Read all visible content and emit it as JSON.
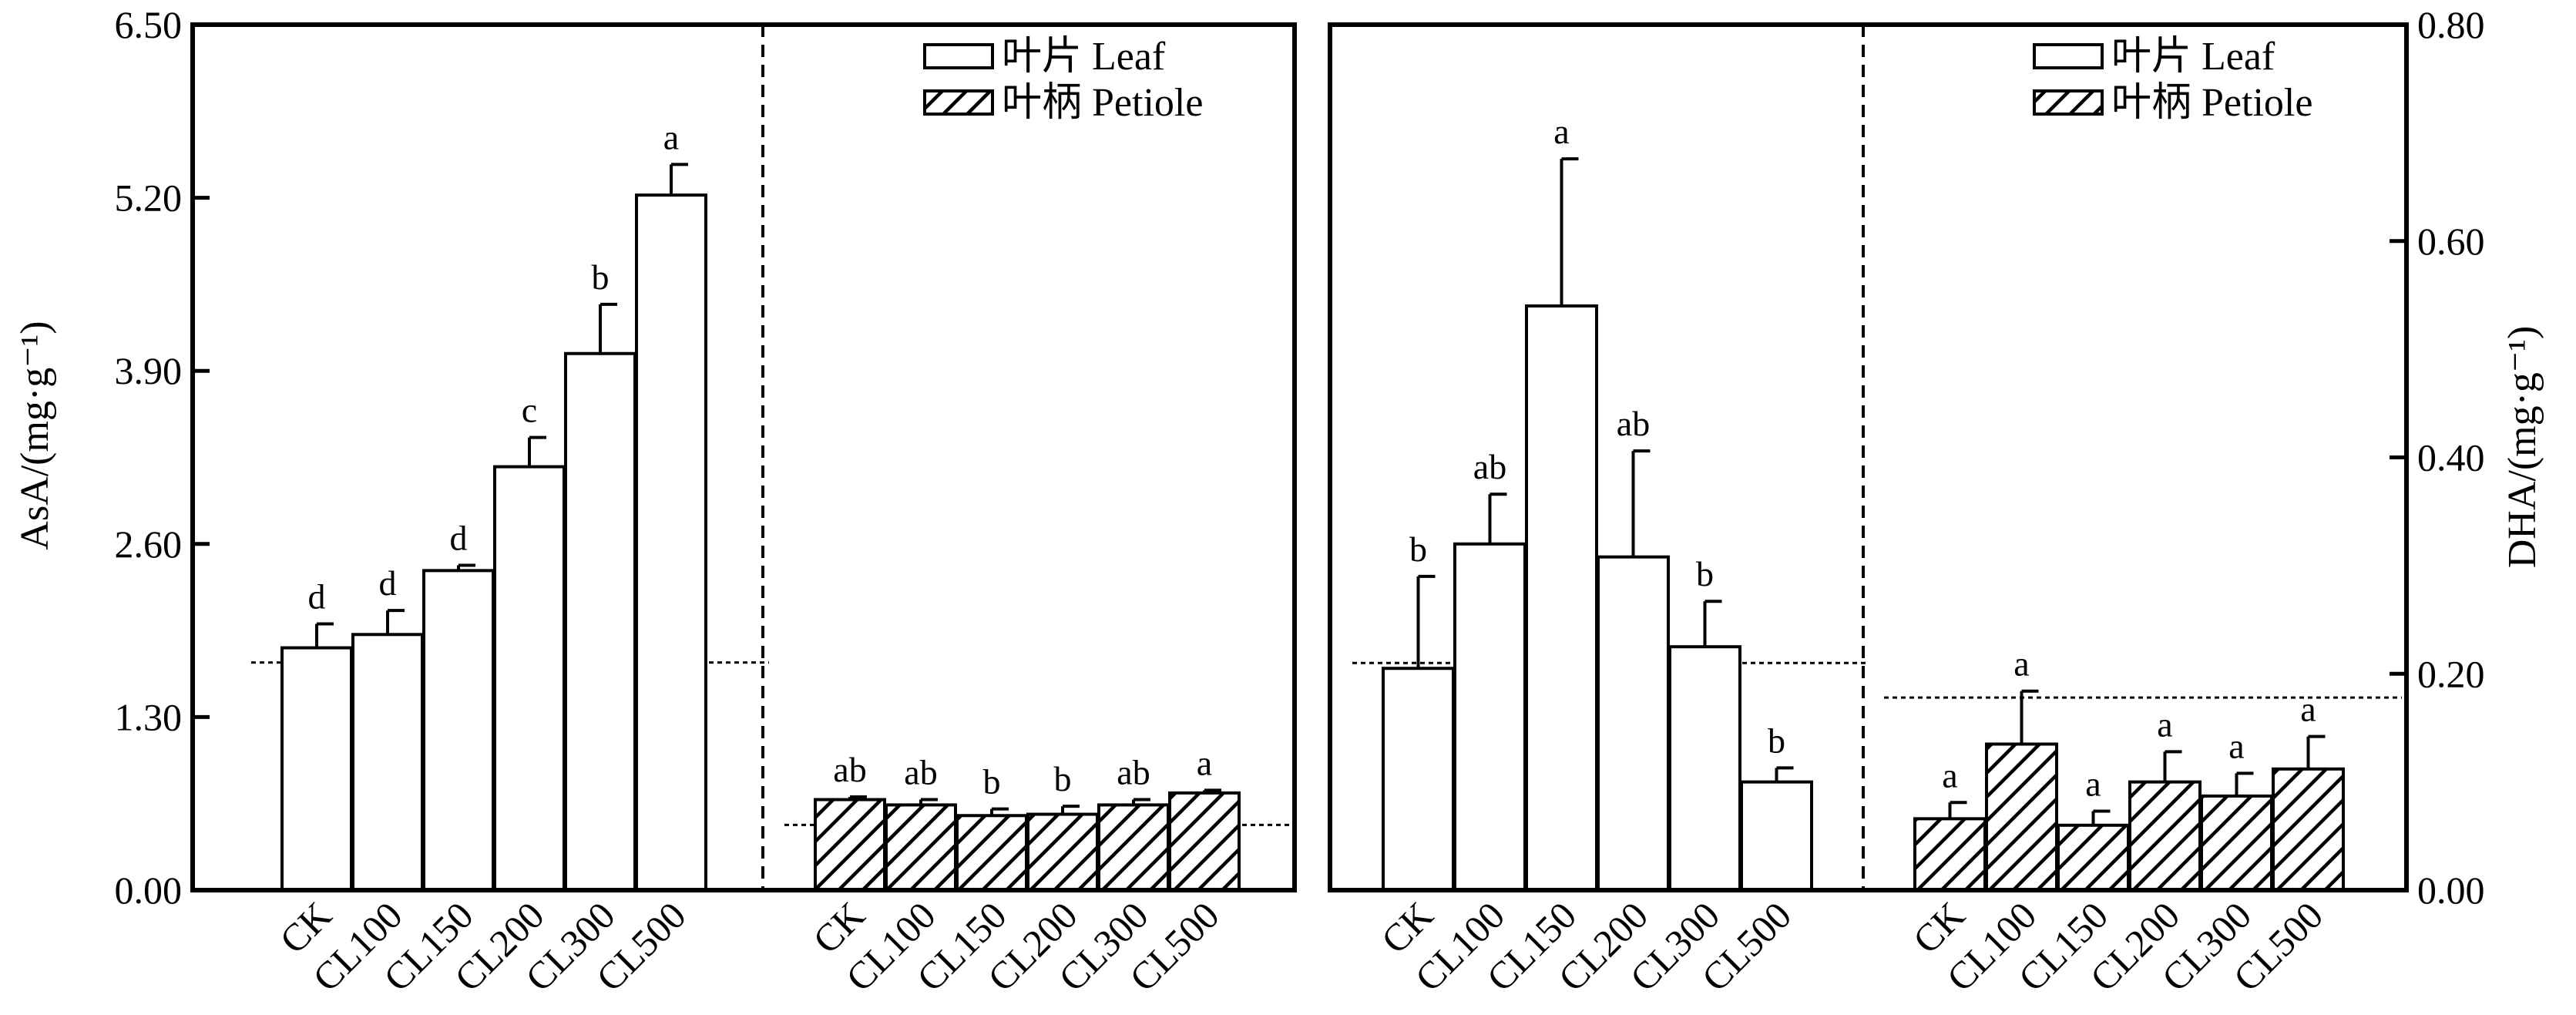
{
  "chart_data": [
    {
      "type": "bar",
      "ylabel": "AsA/(mg·g⁻¹)",
      "ylim": [
        0,
        6.5
      ],
      "yticks": [
        "0.00",
        "1.30",
        "2.60",
        "3.90",
        "5.20",
        "6.50"
      ],
      "y_axis_side": "left",
      "legend": {
        "placement": "top-right",
        "entries": [
          "叶片 Leaf",
          "叶柄 Petiole"
        ]
      },
      "groups": [
        {
          "name": "叶片 Leaf",
          "categories": [
            "CK",
            "CL100",
            "CL150",
            "CL200",
            "CL300",
            "CL500"
          ],
          "values": [
            1.82,
            1.92,
            2.4,
            3.18,
            4.03,
            5.22
          ],
          "errors": [
            0.18,
            0.18,
            0.04,
            0.22,
            0.37,
            0.23
          ],
          "letters": [
            "d",
            "d",
            "d",
            "c",
            "b",
            "a"
          ],
          "reference_line": 1.71
        },
        {
          "name": "叶柄 Petiole",
          "categories": [
            "CK",
            "CL100",
            "CL150",
            "CL200",
            "CL300",
            "CL500"
          ],
          "values": [
            0.68,
            0.64,
            0.56,
            0.57,
            0.64,
            0.73
          ],
          "errors": [
            0.02,
            0.04,
            0.05,
            0.06,
            0.04,
            0.02
          ],
          "letters": [
            "ab",
            "ab",
            "b",
            "b",
            "ab",
            "a"
          ],
          "reference_line": 0.49
        }
      ]
    },
    {
      "type": "bar",
      "ylabel": "DHA/(mg·g⁻¹)",
      "ylim": [
        0,
        0.8
      ],
      "yticks": [
        "0.00",
        "0.20",
        "0.40",
        "0.60",
        "0.80"
      ],
      "y_axis_side": "right",
      "legend": {
        "placement": "top-right",
        "entries": [
          "叶片 Leaf",
          "叶柄 Petiole"
        ]
      },
      "groups": [
        {
          "name": "叶片 Leaf",
          "categories": [
            "CK",
            "CL100",
            "CL150",
            "CL200",
            "CL300",
            "CL500"
          ],
          "values": [
            0.205,
            0.32,
            0.54,
            0.308,
            0.225,
            0.1
          ],
          "errors": [
            0.085,
            0.046,
            0.136,
            0.098,
            0.042,
            0.013
          ],
          "letters": [
            "b",
            "ab",
            "a",
            "ab",
            "b",
            "b"
          ],
          "reference_line": 0.21
        },
        {
          "name": "叶柄 Petiole",
          "categories": [
            "CK",
            "CL100",
            "CL150",
            "CL200",
            "CL300",
            "CL500"
          ],
          "values": [
            0.066,
            0.135,
            0.06,
            0.1,
            0.087,
            0.112
          ],
          "errors": [
            0.015,
            0.049,
            0.013,
            0.028,
            0.021,
            0.03
          ],
          "letters": [
            "a",
            "a",
            "a",
            "a",
            "a",
            "a"
          ],
          "reference_line": 0.178
        }
      ]
    }
  ]
}
